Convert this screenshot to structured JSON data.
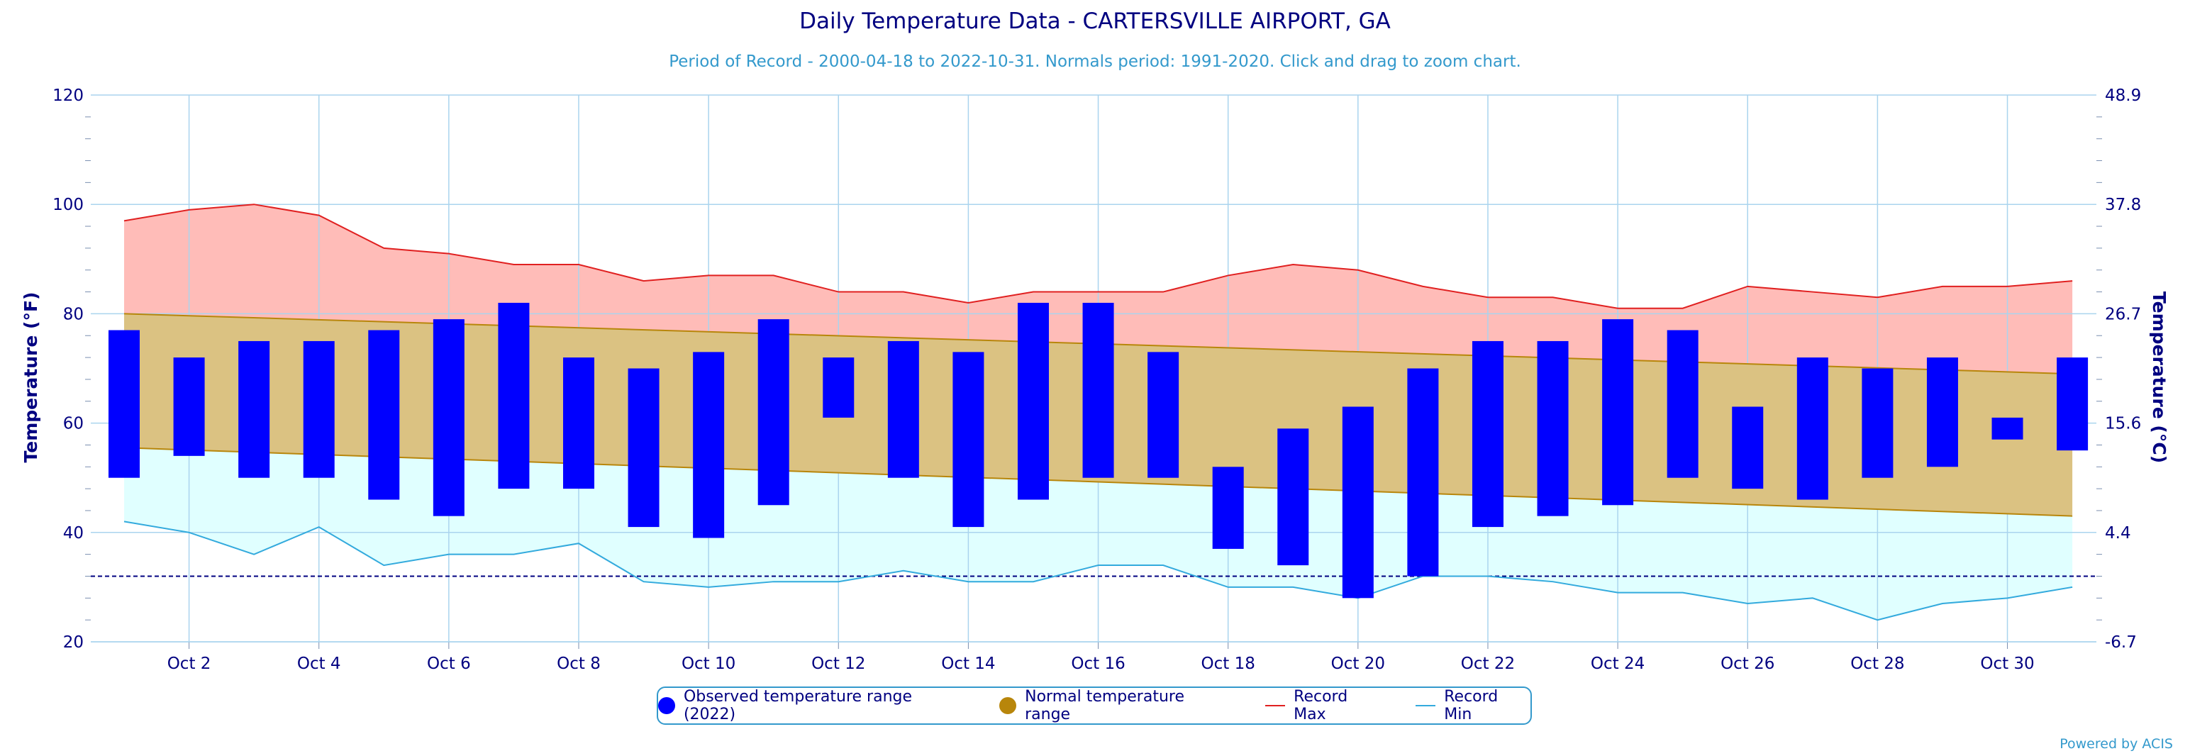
{
  "chart_data": {
    "type": "bar",
    "title": "Daily Temperature Data - CARTERSVILLE AIRPORT, GA",
    "subtitle": "Period of Record - 2000-04-18 to 2022-10-31. Normals period: 1991-2020. Click and drag to zoom chart.",
    "ylabel": "Temperature (°F)",
    "ylabel_right": "Temperature (°C)",
    "ylim": [
      20,
      120
    ],
    "ylim_right": [
      -6.7,
      48.9
    ],
    "y_ticks": [
      "20",
      "40",
      "60",
      "80",
      "100",
      "120"
    ],
    "y_ticks_right": [
      "-6.7",
      "4.4",
      "15.6",
      "26.7",
      "37.8",
      "48.9"
    ],
    "x_tick_labels": [
      {
        "day": 2,
        "label": "Oct 2"
      },
      {
        "day": 4,
        "label": "Oct 4"
      },
      {
        "day": 6,
        "label": "Oct 6"
      },
      {
        "day": 8,
        "label": "Oct 8"
      },
      {
        "day": 10,
        "label": "Oct 10"
      },
      {
        "day": 12,
        "label": "Oct 12"
      },
      {
        "day": 14,
        "label": "Oct 14"
      },
      {
        "day": 16,
        "label": "Oct 16"
      },
      {
        "day": 18,
        "label": "Oct 18"
      },
      {
        "day": 20,
        "label": "Oct 20"
      },
      {
        "day": 22,
        "label": "Oct 22"
      },
      {
        "day": 24,
        "label": "Oct 24"
      },
      {
        "day": 26,
        "label": "Oct 26"
      },
      {
        "day": 28,
        "label": "Oct 28"
      },
      {
        "day": 30,
        "label": "Oct 30"
      }
    ],
    "days": [
      1,
      2,
      3,
      4,
      5,
      6,
      7,
      8,
      9,
      10,
      11,
      12,
      13,
      14,
      15,
      16,
      17,
      18,
      19,
      20,
      21,
      22,
      23,
      24,
      25,
      26,
      27,
      28,
      29,
      30,
      31
    ],
    "observed_high": [
      77,
      72,
      75,
      75,
      77,
      79,
      82,
      72,
      70,
      73,
      79,
      72,
      75,
      73,
      82,
      82,
      73,
      52,
      59,
      63,
      70,
      75,
      75,
      79,
      77,
      63,
      72,
      70,
      72,
      61,
      72
    ],
    "observed_low": [
      50,
      54,
      50,
      50,
      46,
      43,
      48,
      48,
      41,
      39,
      45,
      61,
      50,
      41,
      46,
      50,
      50,
      37,
      34,
      28,
      32,
      41,
      43,
      45,
      50,
      48,
      46,
      50,
      52,
      57,
      55
    ],
    "normal_high_start": 80,
    "normal_high_end": 69,
    "normal_low_start": 55.5,
    "normal_low_end": 43,
    "record_max": [
      97,
      99,
      100,
      98,
      92,
      91,
      89,
      89,
      86,
      87,
      87,
      84,
      84,
      82,
      84,
      84,
      84,
      87,
      89,
      88,
      85,
      83,
      83,
      81,
      81,
      85,
      84,
      83,
      85,
      85,
      86
    ],
    "record_min": [
      42,
      40,
      36,
      41,
      34,
      36,
      36,
      38,
      31,
      30,
      31,
      31,
      33,
      31,
      31,
      34,
      34,
      30,
      30,
      28,
      32,
      32,
      31,
      29,
      29,
      27,
      28,
      24,
      27,
      28,
      30
    ],
    "freezing_line": 32,
    "legend": [
      {
        "label": "Observed temperature range (2022)",
        "color": "#0000ff",
        "kind": "dot"
      },
      {
        "label": "Normal temperature range",
        "color": "#b8860b",
        "kind": "dot"
      },
      {
        "label": "Record Max",
        "color": "#e02020",
        "kind": "line"
      },
      {
        "label": "Record Min",
        "color": "#33aadd",
        "kind": "line"
      }
    ],
    "colors": {
      "observed": "#0000ff",
      "normal_fill": "#dbc282",
      "normal_line": "#b8860b",
      "record_max_fill": "#ffbcb8",
      "record_max_line": "#e02020",
      "record_min_fill": "#e0ffff",
      "record_min_line": "#33aadd",
      "grid": "#aad4ee",
      "freezing": "#000080"
    },
    "legend_position": "bottom-center",
    "grid": true
  },
  "credits": "Powered by ACIS"
}
